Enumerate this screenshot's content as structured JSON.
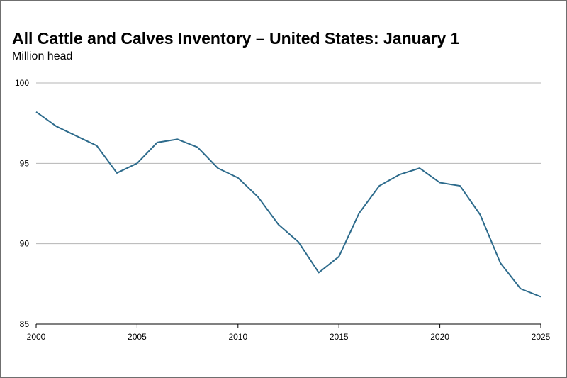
{
  "chart_data": {
    "type": "line",
    "title": "All Cattle and Calves Inventory – United States: January 1",
    "subtitle": "Million head",
    "xlabel": "",
    "ylabel": "",
    "xlim": [
      2000,
      2025
    ],
    "ylim": [
      85,
      100
    ],
    "x_ticks": [
      "2000",
      "2005",
      "2010",
      "2015",
      "2020",
      "2025"
    ],
    "y_ticks": [
      "85",
      "90",
      "95",
      "100"
    ],
    "grid": "horizontal",
    "line_color": "#2d6b8c",
    "series": [
      {
        "x": [
          2000,
          2001,
          2002,
          2003,
          2004,
          2005,
          2006,
          2007,
          2008,
          2009,
          2010,
          2011,
          2012,
          2013,
          2014,
          2015,
          2016,
          2017,
          2018,
          2019,
          2020,
          2021,
          2022,
          2023,
          2024,
          2025
        ],
        "values": [
          98.2,
          97.3,
          96.7,
          96.1,
          94.4,
          95.0,
          96.3,
          96.5,
          96.0,
          94.7,
          94.1,
          92.9,
          91.2,
          90.1,
          88.2,
          89.2,
          91.9,
          93.6,
          94.3,
          94.7,
          93.8,
          93.6,
          91.8,
          88.8,
          87.2,
          86.7
        ]
      }
    ]
  }
}
